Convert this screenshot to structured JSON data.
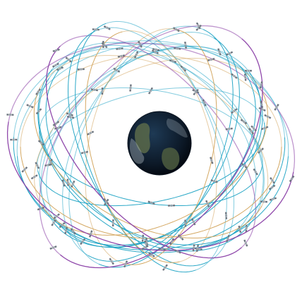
{
  "scene": {
    "subject": "satellite-constellation",
    "earth": {
      "ocean_color": "#0d1a2a",
      "land_color": "#5a6a4a",
      "cloud_color": "#c9d3da"
    },
    "orbit_colors": {
      "teal": "#1fa3c4",
      "gold": "#d2a35a",
      "purple": "#8a3fa6"
    },
    "satellite_color": "#6e7680"
  }
}
